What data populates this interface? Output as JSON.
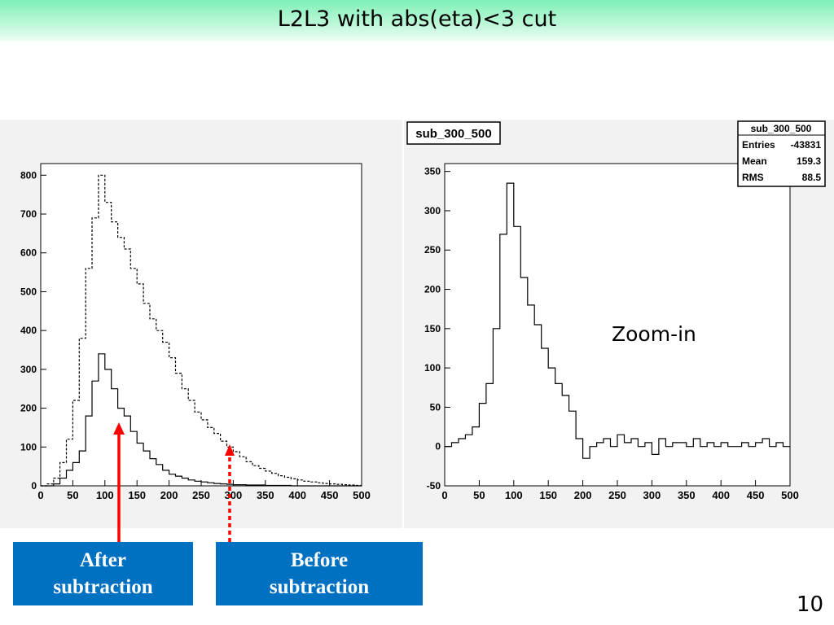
{
  "slide": {
    "title": "L2L3 with abs(eta)<3 cut",
    "page_number": "10",
    "zoom_label": "Zoom-in",
    "after_box": {
      "line1": "After",
      "line2": "subtraction"
    },
    "before_box": {
      "line1": "Before",
      "line2": "subtraction"
    },
    "colors": {
      "title_bar": "#7ff0b8",
      "callout_fill": "#0070c0",
      "arrow": "#ff0000",
      "plot_background": "#f2f2f2"
    }
  },
  "chart_data": [
    {
      "type": "line",
      "step": true,
      "title": "",
      "xlabel": "",
      "ylabel": "",
      "xlim": [
        0,
        500
      ],
      "ylim": [
        0,
        830
      ],
      "xticks": [
        0,
        50,
        100,
        150,
        200,
        250,
        300,
        350,
        400,
        450,
        500
      ],
      "yticks": [
        0,
        100,
        200,
        300,
        400,
        500,
        600,
        700,
        800
      ],
      "series": [
        {
          "style": "dashed",
          "x": [
            0,
            10,
            20,
            30,
            40,
            50,
            60,
            70,
            80,
            90,
            100,
            110,
            120,
            130,
            140,
            150,
            160,
            170,
            180,
            190,
            200,
            210,
            220,
            230,
            240,
            250,
            260,
            270,
            280,
            290,
            300,
            310,
            320,
            330,
            340,
            350,
            360,
            370,
            380,
            390,
            400,
            410,
            420,
            430,
            440,
            450,
            460,
            470,
            480,
            490,
            500
          ],
          "values": [
            0,
            5,
            20,
            60,
            120,
            220,
            380,
            560,
            690,
            800,
            730,
            680,
            640,
            610,
            560,
            520,
            470,
            430,
            400,
            370,
            330,
            290,
            250,
            220,
            190,
            170,
            150,
            135,
            115,
            100,
            88,
            75,
            62,
            52,
            45,
            38,
            32,
            26,
            22,
            18,
            15,
            12,
            10,
            8,
            6,
            5,
            4,
            3,
            2,
            1,
            0
          ]
        },
        {
          "style": "solid",
          "x": [
            0,
            10,
            20,
            30,
            40,
            50,
            60,
            70,
            80,
            90,
            100,
            110,
            120,
            130,
            140,
            150,
            160,
            170,
            180,
            190,
            200,
            210,
            220,
            230,
            240,
            250,
            260,
            270,
            280,
            290,
            300,
            310,
            320,
            330,
            340,
            350,
            360,
            370,
            380,
            390,
            400,
            410,
            420,
            430,
            440,
            450,
            460,
            470,
            480,
            490,
            500
          ],
          "values": [
            0,
            0,
            5,
            20,
            40,
            60,
            90,
            180,
            270,
            340,
            300,
            250,
            200,
            180,
            140,
            110,
            90,
            70,
            55,
            40,
            30,
            25,
            20,
            15,
            12,
            10,
            8,
            6,
            5,
            4,
            3,
            3,
            2,
            2,
            2,
            1,
            1,
            1,
            1,
            0,
            0,
            0,
            0,
            0,
            0,
            0,
            0,
            0,
            0,
            0,
            0
          ]
        }
      ]
    },
    {
      "type": "line",
      "step": true,
      "title": "sub_300_500",
      "xlabel": "",
      "ylabel": "",
      "xlim": [
        0,
        500
      ],
      "ylim": [
        -50,
        360
      ],
      "xticks": [
        0,
        50,
        100,
        150,
        200,
        250,
        300,
        350,
        400,
        450,
        500
      ],
      "yticks": [
        -50,
        0,
        50,
        100,
        150,
        200,
        250,
        300,
        350
      ],
      "stats": {
        "name": "sub_300_500",
        "entries": "-43831",
        "mean": "159.3",
        "rms": "88.5"
      },
      "series": [
        {
          "style": "solid",
          "x": [
            0,
            10,
            20,
            30,
            40,
            50,
            60,
            70,
            80,
            90,
            100,
            110,
            120,
            130,
            140,
            150,
            160,
            170,
            180,
            190,
            200,
            210,
            220,
            230,
            240,
            250,
            260,
            270,
            280,
            290,
            300,
            310,
            320,
            330,
            340,
            350,
            360,
            370,
            380,
            390,
            400,
            410,
            420,
            430,
            440,
            450,
            460,
            470,
            480,
            490,
            500
          ],
          "values": [
            0,
            5,
            10,
            15,
            25,
            55,
            80,
            150,
            270,
            335,
            280,
            215,
            180,
            155,
            125,
            100,
            80,
            65,
            45,
            10,
            -15,
            0,
            5,
            10,
            0,
            15,
            5,
            10,
            0,
            5,
            -10,
            10,
            0,
            5,
            5,
            0,
            10,
            0,
            5,
            0,
            5,
            0,
            0,
            5,
            0,
            5,
            10,
            0,
            5,
            0,
            0
          ]
        }
      ]
    }
  ]
}
